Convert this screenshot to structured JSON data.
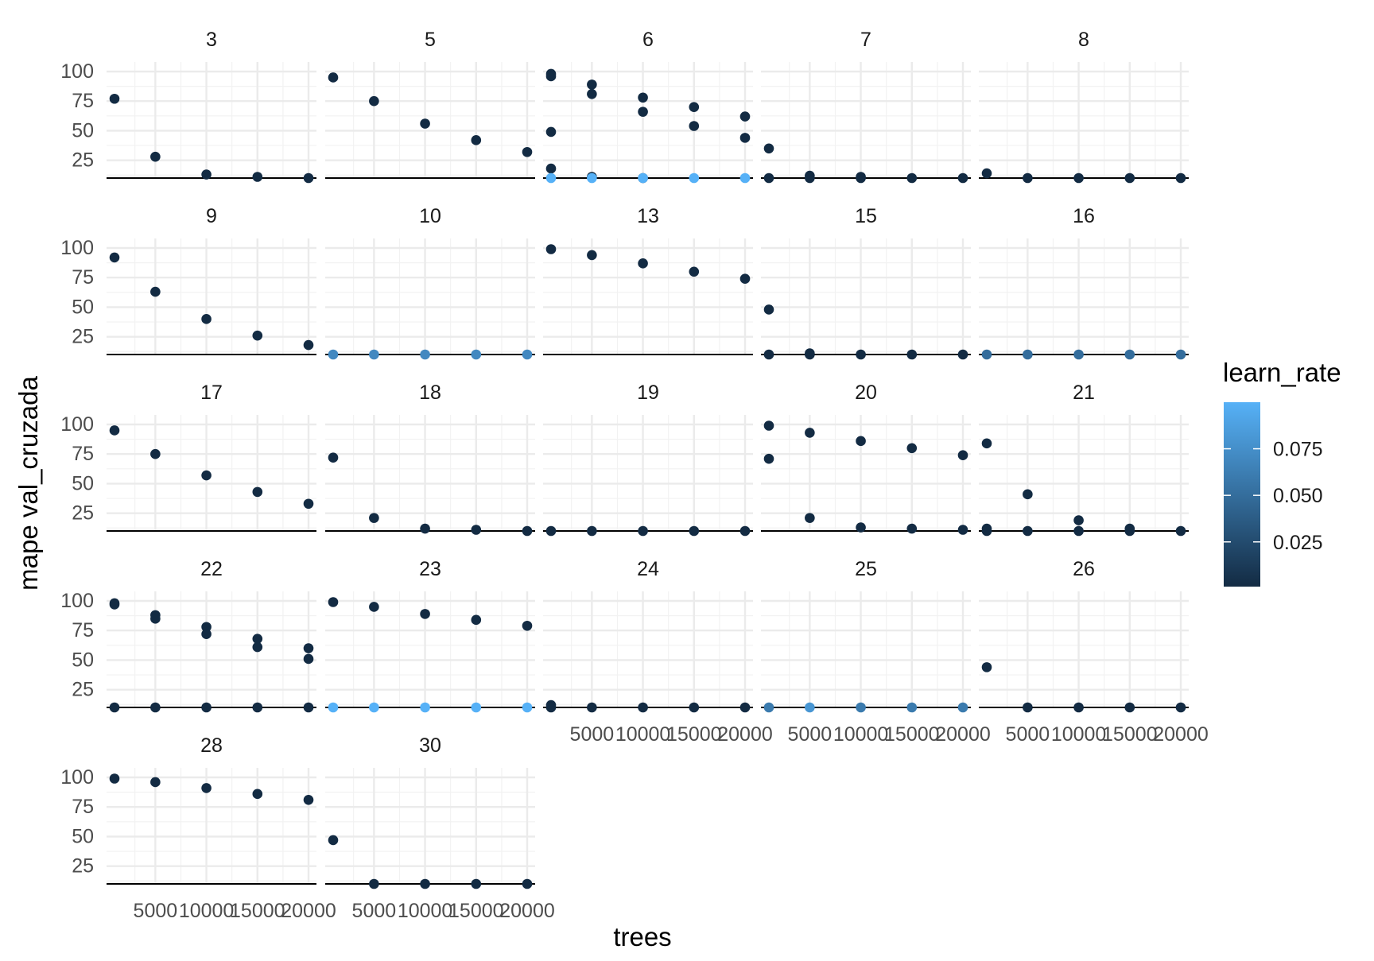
{
  "chart_data": {
    "type": "scatter",
    "facet_by": "unlabelled facet variable",
    "xlabel": "trees",
    "ylabel": "mape val_cruzada",
    "x_ticks": [
      5000,
      10000,
      15000,
      20000
    ],
    "x_tick_labels": [
      "5000",
      "10000",
      "15000",
      "20000"
    ],
    "y_ticks": [
      25,
      50,
      75,
      100
    ],
    "y_tick_labels": [
      "25",
      "50",
      "75",
      "100"
    ],
    "xlim": [
      1000,
      20000
    ],
    "ylim": [
      10,
      100
    ],
    "hline_y": 10,
    "grid": true,
    "legend": {
      "title": "learn_rate",
      "position": "right",
      "type": "colorbar",
      "low_color": "#132B43",
      "high_color": "#56B1F7",
      "range": [
        0.001,
        0.1
      ],
      "ticks": [
        0.025,
        0.05,
        0.075
      ],
      "tick_labels": [
        "0.025",
        "0.050",
        "0.075"
      ]
    },
    "facets": [
      {
        "label": "3",
        "points": [
          [
            1000,
            77,
            0.001
          ],
          [
            5000,
            28,
            0.001
          ],
          [
            10000,
            13,
            0.001
          ],
          [
            15000,
            11,
            0.001
          ],
          [
            20000,
            10,
            0.001
          ]
        ]
      },
      {
        "label": "5",
        "points": [
          [
            1000,
            95,
            0.001
          ],
          [
            5000,
            75,
            0.001
          ],
          [
            10000,
            56,
            0.001
          ],
          [
            15000,
            42,
            0.001
          ],
          [
            20000,
            32,
            0.001
          ]
        ]
      },
      {
        "label": "6",
        "points": [
          [
            1000,
            98,
            0.001
          ],
          [
            1000,
            96,
            0.001
          ],
          [
            1000,
            49,
            0.001
          ],
          [
            1000,
            18,
            0.001
          ],
          [
            1000,
            10,
            0.1
          ],
          [
            5000,
            89,
            0.001
          ],
          [
            5000,
            81,
            0.001
          ],
          [
            5000,
            11,
            0.001
          ],
          [
            5000,
            10,
            0.1
          ],
          [
            10000,
            78,
            0.001
          ],
          [
            10000,
            66,
            0.001
          ],
          [
            10000,
            10,
            0.001
          ],
          [
            10000,
            10,
            0.1
          ],
          [
            15000,
            70,
            0.001
          ],
          [
            15000,
            54,
            0.001
          ],
          [
            15000,
            10,
            0.1
          ],
          [
            20000,
            62,
            0.001
          ],
          [
            20000,
            44,
            0.001
          ],
          [
            20000,
            10,
            0.1
          ]
        ]
      },
      {
        "label": "7",
        "points": [
          [
            1000,
            35,
            0.001
          ],
          [
            1000,
            10,
            0.001
          ],
          [
            5000,
            12,
            0.001
          ],
          [
            5000,
            10,
            0.001
          ],
          [
            10000,
            11,
            0.001
          ],
          [
            10000,
            10,
            0.001
          ],
          [
            15000,
            10,
            0.001
          ],
          [
            20000,
            10,
            0.001
          ]
        ]
      },
      {
        "label": "8",
        "points": [
          [
            1000,
            14,
            0.001
          ],
          [
            5000,
            10,
            0.001
          ],
          [
            10000,
            10,
            0.001
          ],
          [
            15000,
            10,
            0.001
          ],
          [
            20000,
            10,
            0.001
          ]
        ]
      },
      {
        "label": "9",
        "points": [
          [
            1000,
            92,
            0.001
          ],
          [
            5000,
            63,
            0.001
          ],
          [
            10000,
            40,
            0.001
          ],
          [
            15000,
            26,
            0.001
          ],
          [
            20000,
            18,
            0.001
          ]
        ]
      },
      {
        "label": "10",
        "points": [
          [
            1000,
            10,
            0.07
          ],
          [
            5000,
            10,
            0.07
          ],
          [
            10000,
            10,
            0.07
          ],
          [
            15000,
            10,
            0.07
          ],
          [
            20000,
            10,
            0.07
          ]
        ]
      },
      {
        "label": "13",
        "points": [
          [
            1000,
            99,
            0.001
          ],
          [
            5000,
            94,
            0.001
          ],
          [
            10000,
            87,
            0.001
          ],
          [
            15000,
            80,
            0.001
          ],
          [
            20000,
            74,
            0.001
          ]
        ]
      },
      {
        "label": "15",
        "points": [
          [
            1000,
            48,
            0.001
          ],
          [
            1000,
            10,
            0.001
          ],
          [
            5000,
            11,
            0.001
          ],
          [
            5000,
            10,
            0.001
          ],
          [
            10000,
            10,
            0.001
          ],
          [
            15000,
            10,
            0.001
          ],
          [
            20000,
            10,
            0.001
          ]
        ]
      },
      {
        "label": "16",
        "points": [
          [
            1000,
            10,
            0.05
          ],
          [
            5000,
            10,
            0.05
          ],
          [
            10000,
            10,
            0.05
          ],
          [
            15000,
            10,
            0.05
          ],
          [
            20000,
            10,
            0.05
          ]
        ]
      },
      {
        "label": "17",
        "points": [
          [
            1000,
            95,
            0.001
          ],
          [
            5000,
            75,
            0.001
          ],
          [
            10000,
            57,
            0.001
          ],
          [
            15000,
            43,
            0.001
          ],
          [
            20000,
            33,
            0.001
          ]
        ]
      },
      {
        "label": "18",
        "points": [
          [
            1000,
            72,
            0.001
          ],
          [
            5000,
            21,
            0.001
          ],
          [
            10000,
            12,
            0.001
          ],
          [
            15000,
            11,
            0.001
          ],
          [
            20000,
            10,
            0.001
          ]
        ]
      },
      {
        "label": "19",
        "points": [
          [
            1000,
            10,
            0.001
          ],
          [
            5000,
            10,
            0.001
          ],
          [
            10000,
            10,
            0.001
          ],
          [
            15000,
            10,
            0.001
          ],
          [
            20000,
            10,
            0.001
          ]
        ]
      },
      {
        "label": "20",
        "points": [
          [
            1000,
            99,
            0.001
          ],
          [
            1000,
            71,
            0.001
          ],
          [
            5000,
            93,
            0.001
          ],
          [
            5000,
            21,
            0.001
          ],
          [
            10000,
            86,
            0.001
          ],
          [
            10000,
            13,
            0.001
          ],
          [
            15000,
            80,
            0.001
          ],
          [
            15000,
            12,
            0.001
          ],
          [
            20000,
            74,
            0.001
          ],
          [
            20000,
            11,
            0.001
          ]
        ]
      },
      {
        "label": "21",
        "points": [
          [
            1000,
            84,
            0.001
          ],
          [
            1000,
            12,
            0.001
          ],
          [
            1000,
            10,
            0.001
          ],
          [
            5000,
            41,
            0.001
          ],
          [
            5000,
            10,
            0.001
          ],
          [
            10000,
            19,
            0.001
          ],
          [
            10000,
            10,
            0.001
          ],
          [
            15000,
            12,
            0.001
          ],
          [
            15000,
            10,
            0.001
          ],
          [
            20000,
            10,
            0.001
          ]
        ]
      },
      {
        "label": "22",
        "points": [
          [
            1000,
            98,
            0.001
          ],
          [
            1000,
            97,
            0.001
          ],
          [
            1000,
            10,
            0.001
          ],
          [
            5000,
            88,
            0.001
          ],
          [
            5000,
            85,
            0.001
          ],
          [
            5000,
            10,
            0.001
          ],
          [
            10000,
            78,
            0.001
          ],
          [
            10000,
            72,
            0.001
          ],
          [
            10000,
            10,
            0.001
          ],
          [
            15000,
            68,
            0.001
          ],
          [
            15000,
            61,
            0.001
          ],
          [
            15000,
            10,
            0.001
          ],
          [
            20000,
            60,
            0.001
          ],
          [
            20000,
            51,
            0.001
          ],
          [
            20000,
            10,
            0.001
          ]
        ]
      },
      {
        "label": "23",
        "points": [
          [
            1000,
            99,
            0.001
          ],
          [
            1000,
            10,
            0.1
          ],
          [
            5000,
            95,
            0.001
          ],
          [
            5000,
            10,
            0.1
          ],
          [
            10000,
            89,
            0.001
          ],
          [
            10000,
            10,
            0.1
          ],
          [
            15000,
            84,
            0.001
          ],
          [
            15000,
            10,
            0.1
          ],
          [
            20000,
            79,
            0.001
          ],
          [
            20000,
            10,
            0.1
          ]
        ]
      },
      {
        "label": "24",
        "points": [
          [
            1000,
            12,
            0.001
          ],
          [
            1000,
            10,
            0.001
          ],
          [
            5000,
            10,
            0.001
          ],
          [
            10000,
            10,
            0.001
          ],
          [
            15000,
            10,
            0.001
          ],
          [
            20000,
            10,
            0.001
          ]
        ]
      },
      {
        "label": "25",
        "points": [
          [
            1000,
            10,
            0.06
          ],
          [
            5000,
            10,
            0.08
          ],
          [
            10000,
            10,
            0.06
          ],
          [
            15000,
            10,
            0.06
          ],
          [
            20000,
            10,
            0.06
          ]
        ]
      },
      {
        "label": "26",
        "points": [
          [
            1000,
            44,
            0.001
          ],
          [
            5000,
            10,
            0.001
          ],
          [
            10000,
            10,
            0.001
          ],
          [
            15000,
            10,
            0.001
          ],
          [
            20000,
            10,
            0.001
          ]
        ]
      },
      {
        "label": "28",
        "points": [
          [
            1000,
            99,
            0.001
          ],
          [
            5000,
            96,
            0.001
          ],
          [
            10000,
            91,
            0.001
          ],
          [
            15000,
            86,
            0.001
          ],
          [
            20000,
            81,
            0.001
          ]
        ]
      },
      {
        "label": "30",
        "points": [
          [
            1000,
            47,
            0.001
          ],
          [
            5000,
            10,
            0.001
          ],
          [
            10000,
            10,
            0.001
          ],
          [
            15000,
            10,
            0.001
          ],
          [
            20000,
            10,
            0.001
          ]
        ]
      }
    ]
  }
}
